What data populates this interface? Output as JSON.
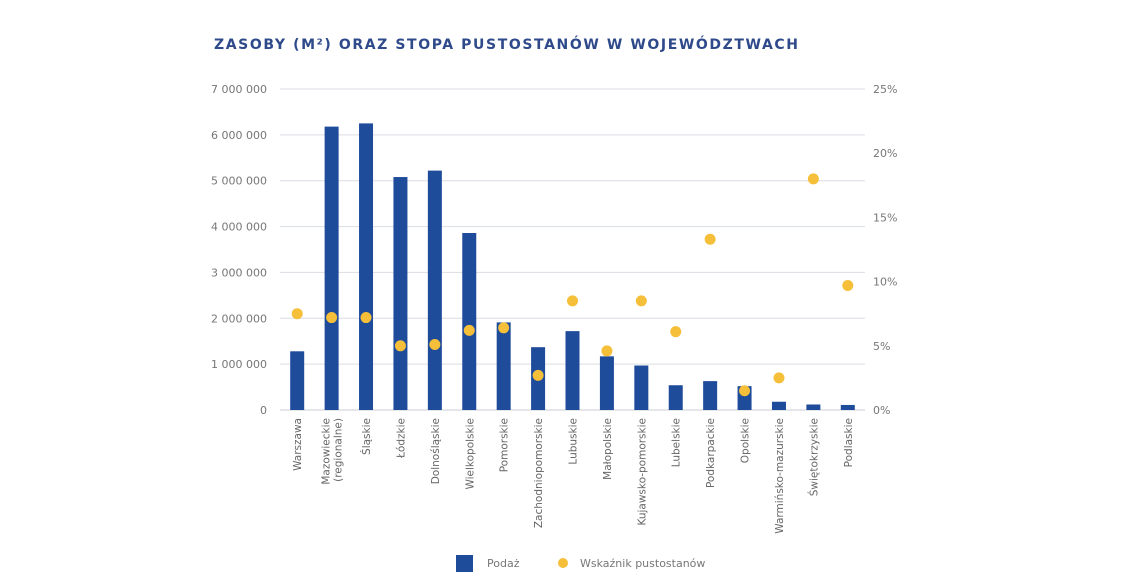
{
  "chart_data": {
    "type": "bar",
    "title": "ZASOBY (M²) ORAZ STOPA PUSTOSTANÓW W WOJEWÓDZTWACH",
    "categories": [
      [
        "Warszawa"
      ],
      [
        "Mazowieckie",
        "(regionalne)"
      ],
      [
        "Śląskie"
      ],
      [
        "Łódzkie"
      ],
      [
        "Dolnośląskie"
      ],
      [
        "Wielkopolskie"
      ],
      [
        "Pomorskie"
      ],
      [
        "Zachodniopomorskie"
      ],
      [
        "Lubuskie"
      ],
      [
        "Małopolskie"
      ],
      [
        "Kujawsko-pomorskie"
      ],
      [
        "Lubelskie"
      ],
      [
        "Podkarpackie"
      ],
      [
        "Opolskie"
      ],
      [
        "Warmińsko-mazurskie"
      ],
      [
        "Świętokrzyskie"
      ],
      [
        "Podlaskie"
      ]
    ],
    "series": [
      {
        "name": "Podaż",
        "kind": "bar",
        "axis": "left",
        "color": "#1f4b9b",
        "values": [
          1280000,
          6180000,
          6250000,
          5080000,
          5220000,
          3860000,
          1910000,
          1370000,
          1720000,
          1170000,
          970000,
          540000,
          630000,
          520000,
          180000,
          120000,
          110000
        ]
      },
      {
        "name": "Wskaźnik pustostanów",
        "kind": "scatter",
        "axis": "right",
        "color": "#f5bf3a",
        "values": [
          7.5,
          7.2,
          7.2,
          5.0,
          5.1,
          6.2,
          6.4,
          2.7,
          8.5,
          4.6,
          8.5,
          6.1,
          13.3,
          1.5,
          2.5,
          18.0,
          9.7
        ]
      }
    ],
    "y_left": {
      "min": 0,
      "max": 7000000,
      "ticks": [
        "0",
        "1 000 000",
        "2 000 000",
        "3 000 000",
        "4 000 000",
        "5 000 000",
        "6 000 000",
        "7 000 000"
      ]
    },
    "y_right": {
      "min": 0,
      "max": 25,
      "unit": "%",
      "ticks": [
        "0%",
        "5%",
        "10%",
        "15%",
        "20%",
        "25%"
      ]
    },
    "grid": true,
    "legend": {
      "placement": "bottom",
      "items": [
        {
          "label": "Podaż",
          "marker": "square",
          "color": "#1f4b9b"
        },
        {
          "label": "Wskaźnik pustostanów",
          "marker": "circle",
          "color": "#f5bf3a"
        }
      ]
    }
  }
}
